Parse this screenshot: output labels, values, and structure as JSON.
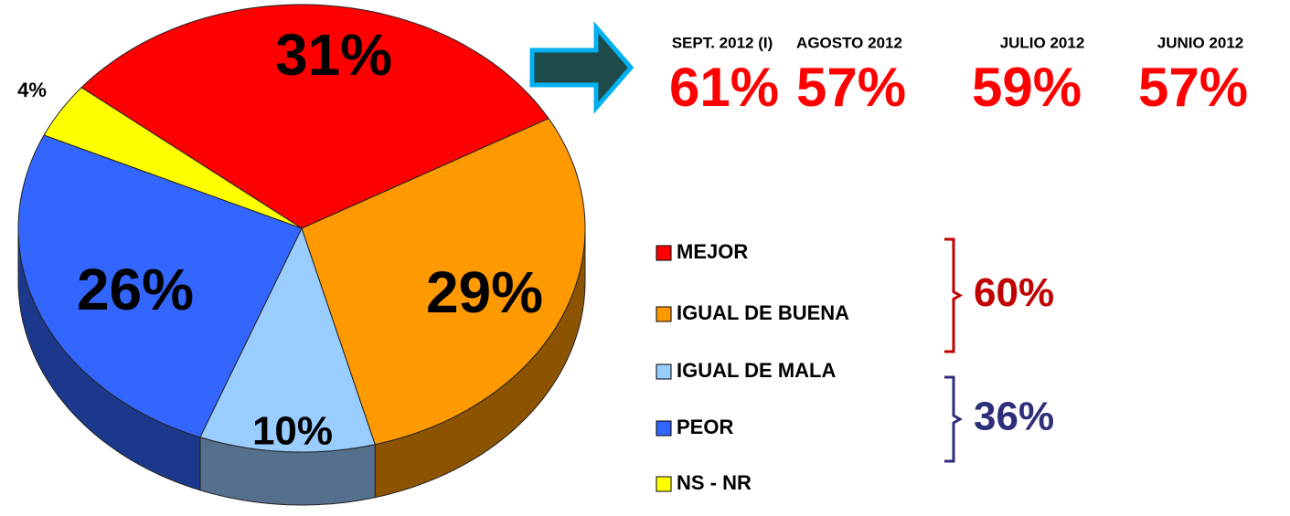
{
  "chart_data": {
    "type": "pie",
    "categories": [
      "MEJOR",
      "IGUAL DE BUENA",
      "IGUAL DE MALA",
      "PEOR",
      "NS - NR"
    ],
    "values": [
      31,
      29,
      10,
      26,
      4
    ],
    "value_labels": [
      "31%",
      "29%",
      "10%",
      "26%",
      "4%"
    ],
    "colors": [
      "#ff0000",
      "#ff9900",
      "#99ccff",
      "#3366ff",
      "#ffff00"
    ]
  },
  "comparison": [
    {
      "period": "SEPT. 2012 (I)",
      "value": 61,
      "label": "61%"
    },
    {
      "period": "AGOSTO 2012",
      "value": 57,
      "label": "57%"
    },
    {
      "period": "JULIO 2012",
      "value": 59,
      "label": "59%"
    },
    {
      "period": "JUNIO 2012",
      "value": 57,
      "label": "57%"
    }
  ],
  "groups": [
    {
      "value": 60,
      "label": "60%",
      "color": "#c00000"
    },
    {
      "value": 36,
      "label": "36%",
      "color": "#2e2e7a"
    }
  ]
}
